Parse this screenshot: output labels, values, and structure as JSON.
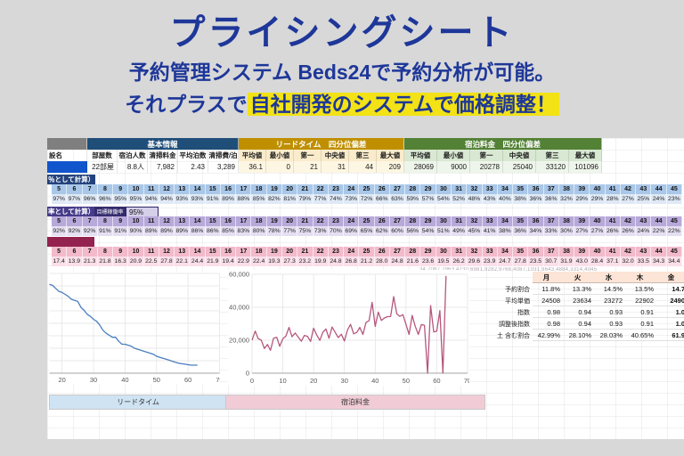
{
  "page": {
    "title": "プライシングシート",
    "subtitle_line1": "予約管理システム Beds24で予約分析が可能。",
    "subtitle_line2_prefix": "それプラスで",
    "subtitle_line2_highlight": "自社開発のシステムで価格調整！"
  },
  "info_table": {
    "name_header": "設名",
    "section_basic_label": "基本情報",
    "section_leadtime_label": "リードタイム　四分位偏差",
    "section_price_label": "宿泊料金　四分位偏差",
    "basic_headers": [
      "部屋数",
      "宿泊人数",
      "清掃料金",
      "平均泊数",
      "清掃費/泊"
    ],
    "basic_values": [
      "22部屋",
      "8.8人",
      "7,982",
      "2.43",
      "3,289"
    ],
    "stat_headers_leadtime": [
      "平均値",
      "最小値",
      "第一",
      "中央値",
      "第三",
      "最大値"
    ],
    "stat_values_leadtime": [
      "36.1",
      "0",
      "21",
      "31",
      "44",
      "209"
    ],
    "stat_headers_price": [
      "平均値",
      "最小値",
      "第一",
      "中央値",
      "第三",
      "最大値"
    ],
    "stat_values_price": [
      "28069",
      "9000",
      "20278",
      "25040",
      "33120",
      "101096"
    ]
  },
  "bands": {
    "days": [
      "5",
      "6",
      "7",
      "8",
      "9",
      "10",
      "11",
      "12",
      "13",
      "14",
      "15",
      "16",
      "17",
      "18",
      "19",
      "20",
      "21",
      "22",
      "23",
      "24",
      "25",
      "26",
      "27",
      "28",
      "29",
      "30",
      "31",
      "32",
      "33",
      "34",
      "35",
      "36",
      "37",
      "38",
      "39",
      "40",
      "41",
      "42",
      "43",
      "44",
      "45"
    ],
    "blue_header_text": "％として計算）",
    "blue_percents": [
      "97%",
      "97%",
      "96%",
      "96%",
      "95%",
      "95%",
      "94%",
      "94%",
      "93%",
      "93%",
      "91%",
      "89%",
      "88%",
      "85%",
      "82%",
      "81%",
      "79%",
      "77%",
      "74%",
      "73%",
      "72%",
      "66%",
      "63%",
      "59%",
      "57%",
      "54%",
      "52%",
      "48%",
      "43%",
      "40%",
      "38%",
      "36%",
      "36%",
      "32%",
      "29%",
      "29%",
      "28%",
      "27%",
      "25%",
      "24%",
      "23%"
    ],
    "purple_header_text": "率として計算）",
    "purple_target_label": "目標稼働率",
    "purple_target_value": "95%",
    "purple_percents": [
      "92%",
      "92%",
      "92%",
      "91%",
      "91%",
      "90%",
      "89%",
      "89%",
      "89%",
      "86%",
      "86%",
      "85%",
      "83%",
      "80%",
      "78%",
      "77%",
      "75%",
      "73%",
      "70%",
      "69%",
      "65%",
      "62%",
      "60%",
      "56%",
      "54%",
      "51%",
      "49%",
      "45%",
      "41%",
      "38%",
      "36%",
      "34%",
      "33%",
      "30%",
      "27%",
      "27%",
      "26%",
      "26%",
      "24%",
      "22%",
      "22%"
    ],
    "pink_values": [
      "17.4",
      "13.9",
      "21.3",
      "21.8",
      "16.3",
      "20.9",
      "22.5",
      "27.8",
      "22.1",
      "24.4",
      "21.9",
      "19.4",
      "22.9",
      "22.4",
      "19.3",
      "27.3",
      "23.2",
      "19.9",
      "24.8",
      "26.8",
      "21.2",
      "28.0",
      "24.8",
      "21.6",
      "23.6",
      "19.5",
      "26.2",
      "29.6",
      "23.9",
      "24.7",
      "27.8",
      "23.5",
      "30.7",
      "31.9",
      "43.0",
      "28.4",
      "37.1",
      "32.0",
      "33.5",
      "34.3",
      "34.4"
    ],
    "tiny_numbers_text": "34,7087,7963,4730,6981,9282,9768,4087,1031,9643,4884,3314,4045"
  },
  "charts": {
    "leadtime": {
      "label": "リードタイム",
      "type": "line",
      "color": "#4a7ebf",
      "xlim": [
        16,
        70
      ],
      "ylim": [
        0,
        100
      ],
      "x_ticks": [
        "20",
        "30",
        "40",
        "50",
        "60",
        "70"
      ],
      "y_grid": [
        0,
        12.5,
        25,
        37.5,
        50,
        62.5,
        75,
        87.5,
        100
      ],
      "x_start": 16,
      "values": [
        89,
        88,
        85,
        82,
        81,
        79,
        77,
        74,
        73,
        72,
        66,
        63,
        59,
        57,
        54,
        52,
        48,
        43,
        40,
        38,
        36,
        36,
        32,
        29,
        29,
        28,
        27,
        25,
        24,
        23,
        22,
        21,
        20,
        19,
        17,
        16,
        15,
        14,
        13,
        12,
        11,
        10,
        9.5,
        9,
        8.5,
        8,
        8,
        8
      ]
    },
    "price": {
      "label": "宿泊料金",
      "type": "line",
      "color": "#b6577d",
      "xlim": [
        0,
        70
      ],
      "ylim": [
        0,
        60000
      ],
      "x_ticks": [
        "0",
        "10",
        "20",
        "30",
        "40",
        "50",
        "60",
        "70"
      ],
      "y_ticks": [
        "0",
        "20,000",
        "40,000",
        "60,000"
      ],
      "y_grid": [
        0,
        20000,
        40000,
        60000
      ],
      "x_start": 0,
      "values": [
        20000,
        25500,
        21000,
        20000,
        15000,
        17400,
        13900,
        21300,
        21800,
        16300,
        20900,
        22500,
        27800,
        22100,
        24400,
        21900,
        19400,
        22900,
        22400,
        19300,
        27300,
        23200,
        19900,
        24800,
        26800,
        21200,
        28000,
        24800,
        21600,
        23600,
        19500,
        26200,
        29600,
        23900,
        24700,
        27800,
        23500,
        30700,
        31900,
        43000,
        28400,
        37100,
        32000,
        33500,
        34300,
        34400,
        46500,
        36000,
        34500,
        35500,
        29500,
        23500,
        35000,
        28500,
        23500,
        29500,
        29000,
        0,
        41000,
        25000,
        25500,
        38000,
        0,
        59000
      ]
    }
  },
  "week_table": {
    "col_headers": [
      "月",
      "火",
      "水",
      "木",
      "金"
    ],
    "rows": [
      {
        "label": "予約割合",
        "values": [
          "11.8%",
          "13.3%",
          "14.5%",
          "13.5%",
          "14.7"
        ]
      },
      {
        "label": "平均単価",
        "values": [
          "24508",
          "23634",
          "23272",
          "22902",
          "2490"
        ]
      },
      {
        "label": "指数",
        "values": [
          "0.98",
          "0.94",
          "0.93",
          "0.91",
          "1.0"
        ]
      },
      {
        "label": "調整後指数",
        "values": [
          "0.98",
          "0.94",
          "0.93",
          "0.91",
          "1.0"
        ]
      },
      {
        "label": "土 含む割合",
        "values": [
          "42.99%",
          "28.10%",
          "28.03%",
          "40.65%",
          "61.9"
        ]
      }
    ]
  }
}
